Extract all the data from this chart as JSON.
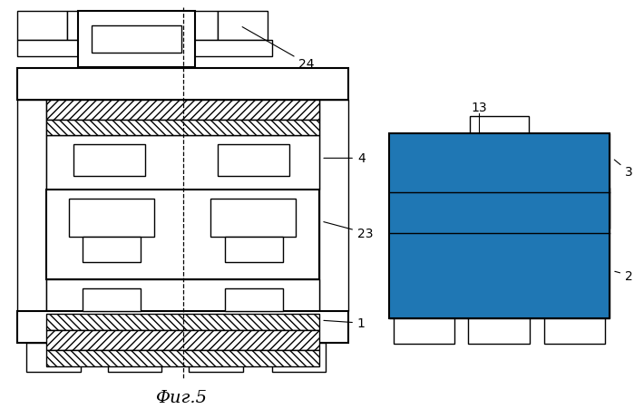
{
  "bg_color": "#ffffff",
  "title": "Φиг.5"
}
